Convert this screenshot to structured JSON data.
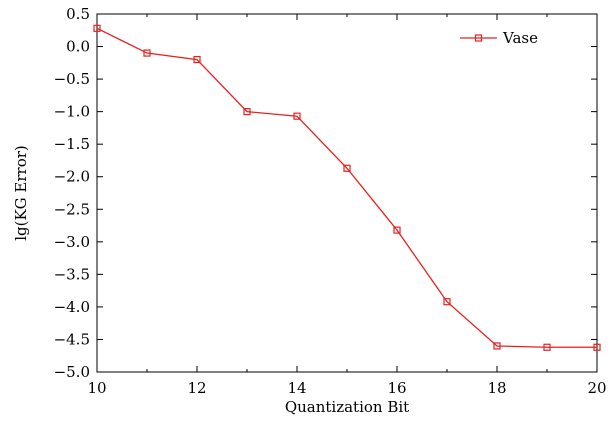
{
  "chart_data": {
    "type": "line",
    "xlabel": "Quantization Bit",
    "ylabel": "lg(KG Error)",
    "xlim": [
      10,
      20
    ],
    "ylim": [
      -5.0,
      0.5
    ],
    "x_ticks": [
      10,
      12,
      14,
      16,
      18,
      20
    ],
    "x_tick_labels": [
      "10",
      "12",
      "14",
      "16",
      "18",
      "20"
    ],
    "y_ticks": [
      0.5,
      0.0,
      -0.5,
      -1.0,
      -1.5,
      -2.0,
      -2.5,
      -3.0,
      -3.5,
      -4.0,
      -4.5,
      -5.0
    ],
    "y_tick_labels": [
      "0.5",
      "0.0",
      "−0.5",
      "−1.0",
      "−1.5",
      "−2.0",
      "−2.5",
      "−3.0",
      "−3.5",
      "−4.0",
      "−4.5",
      "−5.0"
    ],
    "grid": false,
    "legend_position": "top-right",
    "series": [
      {
        "name": "Vase",
        "color": "#e8201f",
        "marker": "square-open",
        "x": [
          10,
          11,
          12,
          13,
          14,
          15,
          16,
          17,
          18,
          19,
          20
        ],
        "y": [
          0.28,
          -0.1,
          -0.2,
          -1.0,
          -1.07,
          -1.87,
          -2.82,
          -3.92,
          -4.6,
          -4.62,
          -4.62
        ]
      }
    ]
  }
}
